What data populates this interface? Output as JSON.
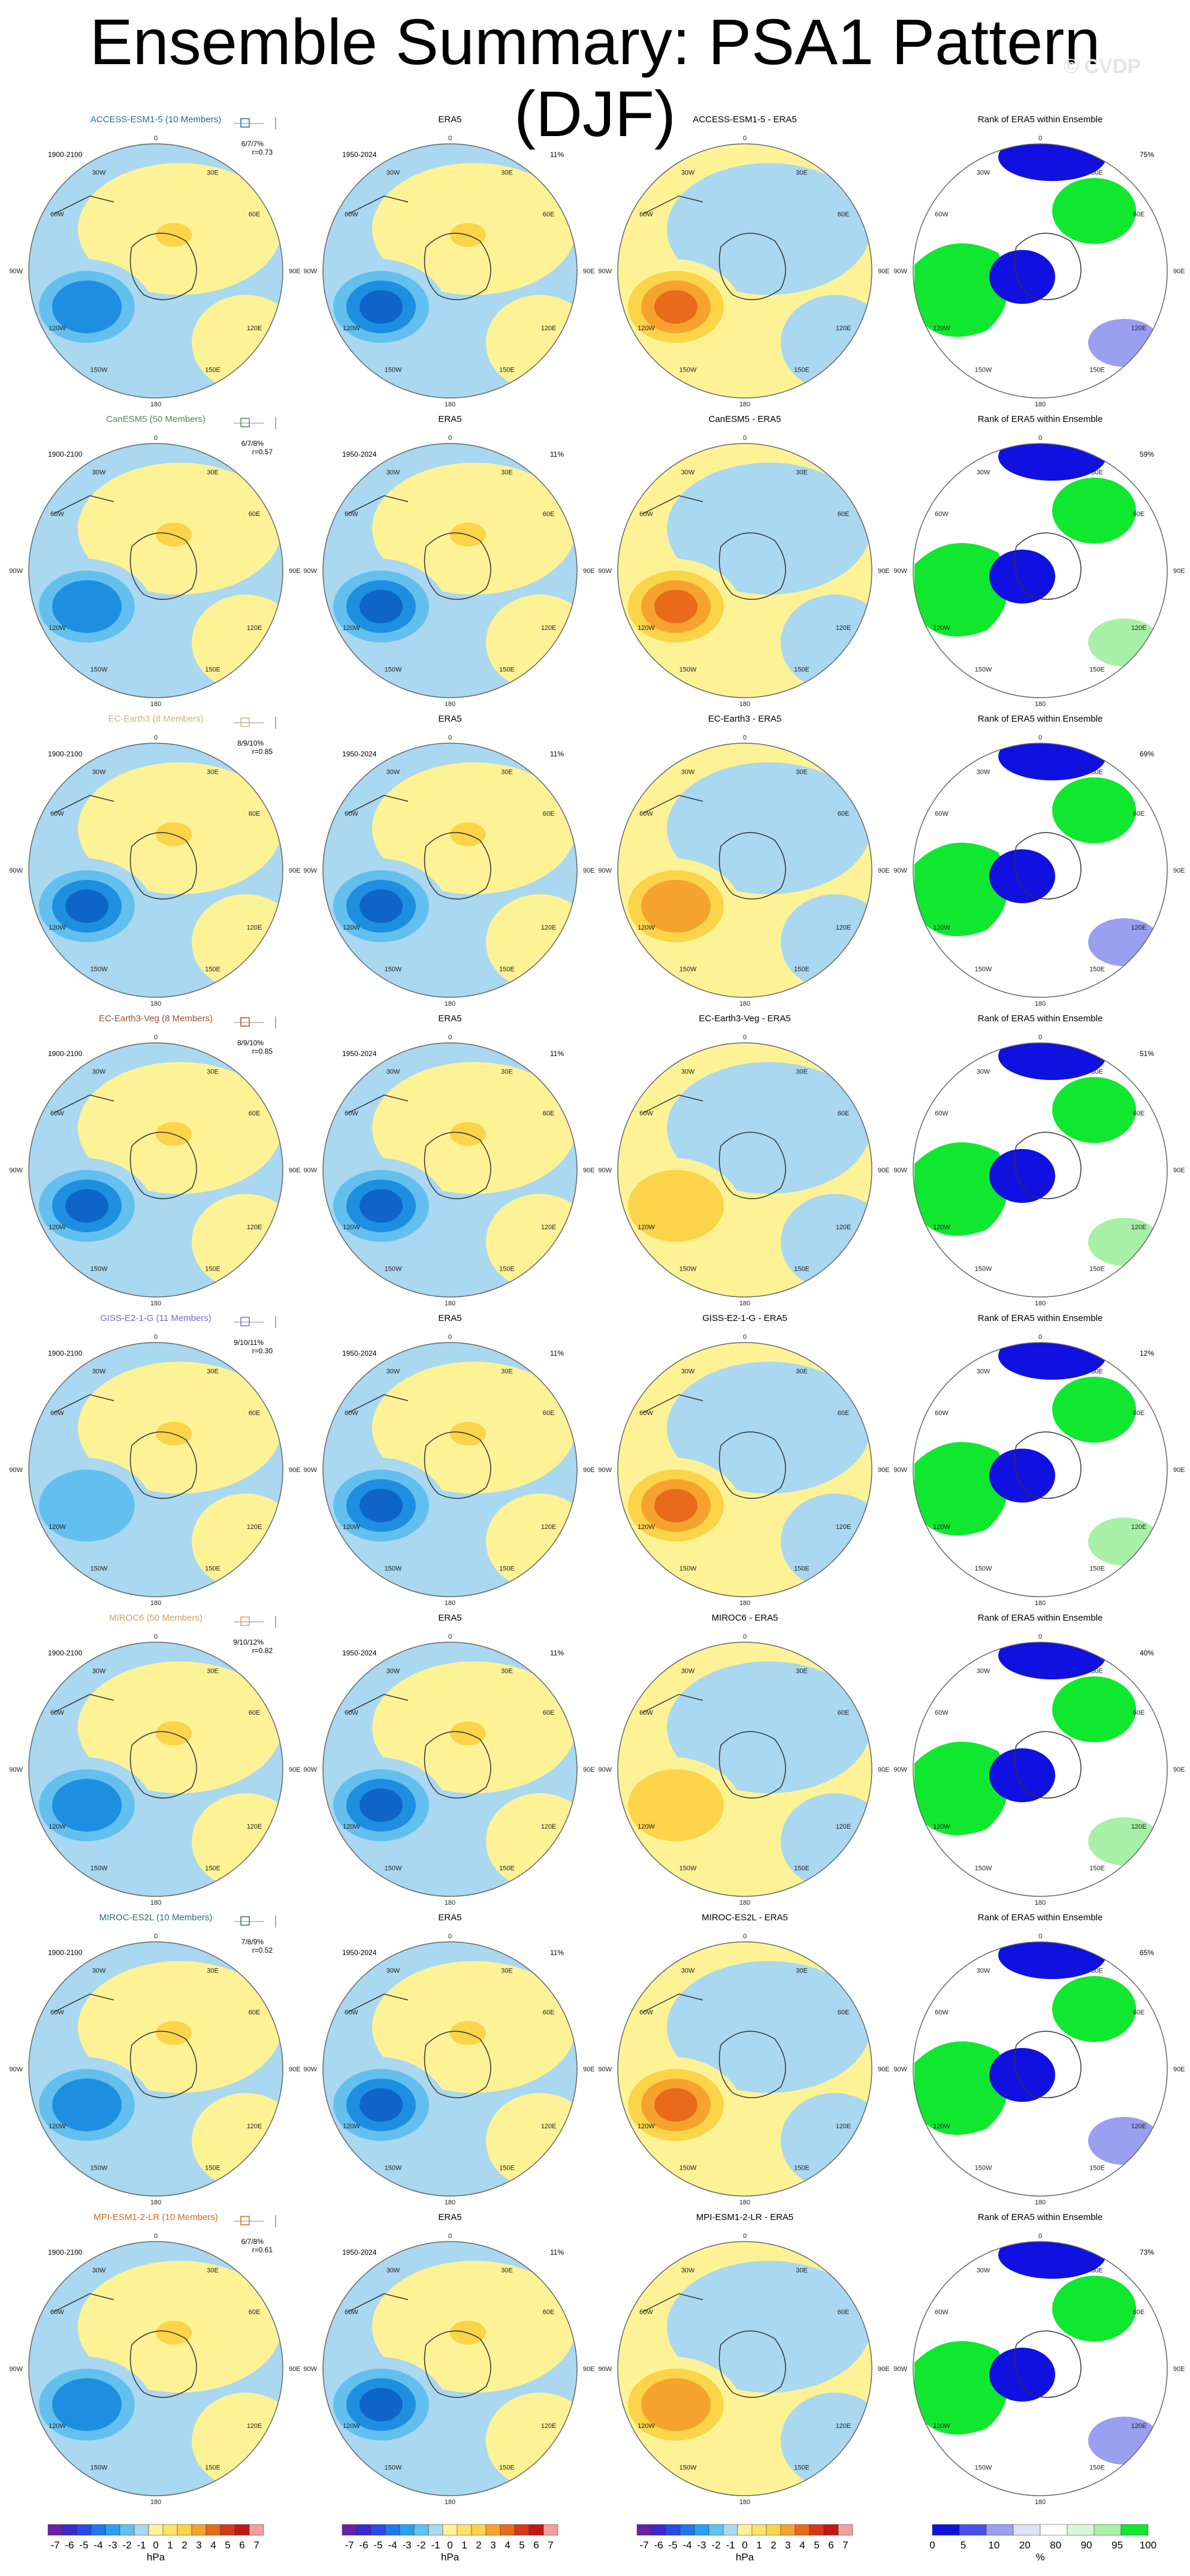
{
  "title": "Ensemble Summary: PSA1 Pattern (DJF)",
  "watermark": "© CVDP",
  "colors": {
    "ocean": "#a9d8f0",
    "land_pos": "#fdf396",
    "neg1": "#63c0ee",
    "neg2": "#1e8fe0",
    "neg3": "#0f64c8",
    "pos1": "#fbd449",
    "pos2": "#f6a32d",
    "pos3": "#e96a1a",
    "rank_low": "#1010e0",
    "rank_low_light": "#9a9ff0",
    "rank_high": "#10e830",
    "rank_high_light": "#a8f0a8"
  },
  "column_headers": {
    "era5": "ERA5",
    "rank": "Rank of ERA5 within Ensemble"
  },
  "period_labels": {
    "model": "1900-2100",
    "obs": "1950-2024",
    "obs_pct": "11%"
  },
  "longitude_labels": [
    "0",
    "30E",
    "60E",
    "90E",
    "120E",
    "150E",
    "180",
    "150W",
    "120W",
    "90W",
    "60W",
    "30W"
  ],
  "rows": [
    {
      "model": "ACCESS-ESM1-5 (10 Members)",
      "model_color": "#1f6f8b",
      "diff": "ACCESS-ESM1-5 - ERA5",
      "pct": "6/7/7%",
      "r": "r=0.73",
      "rank_pct": "75%",
      "neg": 2,
      "diffpos": 3
    },
    {
      "model": "CanESM5 (50 Members)",
      "model_color": "#4f8a4f",
      "diff": "CanESM5 - ERA5",
      "pct": "6/7/8%",
      "r": "r=0.57",
      "rank_pct": "59%",
      "neg": 2,
      "diffpos": 3
    },
    {
      "model": "EC-Earth3 (8 Members)",
      "model_color": "#c9b87a",
      "diff": "EC-Earth3 - ERA5",
      "pct": "8/9/10%",
      "r": "r=0.85",
      "rank_pct": "69%",
      "neg": 3,
      "diffpos": 2
    },
    {
      "model": "EC-Earth3-Veg (8 Members)",
      "model_color": "#a0522d",
      "diff": "EC-Earth3-Veg - ERA5",
      "pct": "8/9/10%",
      "r": "r=0.85",
      "rank_pct": "51%",
      "neg": 3,
      "diffpos": 1
    },
    {
      "model": "GISS-E2-1-G (11 Members)",
      "model_color": "#7b68c8",
      "diff": "GISS-E2-1-G - ERA5",
      "pct": "9/10/11%",
      "r": "r=0.30",
      "rank_pct": "12%",
      "neg": 1,
      "diffpos": 3
    },
    {
      "model": "MIROC6 (50 Members)",
      "model_color": "#d8a060",
      "diff": "MIROC6 - ERA5",
      "pct": "9/10/12%",
      "r": "r=0.82",
      "rank_pct": "40%",
      "neg": 2,
      "diffpos": 1
    },
    {
      "model": "MIROC-ES2L (10 Members)",
      "model_color": "#2e6f6f",
      "diff": "MIROC-ES2L - ERA5",
      "pct": "7/8/9%",
      "r": "r=0.52",
      "rank_pct": "65%",
      "neg": 2,
      "diffpos": 3
    },
    {
      "model": "MPI-ESM1-2-LR (10 Members)",
      "model_color": "#d2691e",
      "diff": "MPI-ESM1-2-LR - ERA5",
      "pct": "6/7/8%",
      "r": "r=0.61",
      "rank_pct": "73%",
      "neg": 2,
      "diffpos": 2
    }
  ],
  "colorbar": {
    "unit": "hPa",
    "ticks": [
      "-7",
      "-6",
      "-5",
      "-4",
      "-3",
      "-2",
      "-1",
      "0",
      "1",
      "2",
      "3",
      "4",
      "5",
      "6",
      "7"
    ],
    "colors": [
      "#6a1fa8",
      "#3a2ad0",
      "#2a4ae8",
      "#1e78e8",
      "#2aa0f0",
      "#63c0ee",
      "#a9d8f0",
      "#fdf396",
      "#fbe36a",
      "#fbd449",
      "#f6a32d",
      "#e96a1a",
      "#d8381a",
      "#c01818",
      "#f2a0a0"
    ]
  },
  "rank_colorbar": {
    "unit": "%",
    "ticks": [
      "0",
      "5",
      "10",
      "20",
      "80",
      "90",
      "95",
      "100"
    ],
    "colors": [
      "#1010e0",
      "#4a50e8",
      "#9a9ff0",
      "#dfe1f8",
      "#ffffff",
      "#d8f6d8",
      "#a8f0a8",
      "#10e830"
    ]
  },
  "chart_data": [
    {
      "type": "heatmap",
      "title": "Ensemble Summary: PSA1 Pattern (DJF)",
      "panels_per_row": [
        "model ensemble mean",
        "ERA5",
        "model - ERA5",
        "Rank of ERA5 within Ensemble"
      ],
      "models": [
        "ACCESS-ESM1-5",
        "CanESM5",
        "EC-Earth3",
        "EC-Earth3-Veg",
        "GISS-E2-1-G",
        "MIROC6",
        "MIROC-ES2L",
        "MPI-ESM1-2-LR"
      ],
      "members": [
        10,
        50,
        8,
        8,
        11,
        50,
        10,
        10
      ],
      "pattern_correlation": [
        0.73,
        0.57,
        0.85,
        0.85,
        0.3,
        0.82,
        0.52,
        0.61
      ],
      "rank_percent": [
        75,
        59,
        69,
        51,
        12,
        40,
        65,
        73
      ],
      "obs_percent_variance": 11,
      "unit": "hPa",
      "contour_levels": [
        -7,
        -6,
        -5,
        -4,
        -3,
        -2,
        -1,
        0,
        1,
        2,
        3,
        4,
        5,
        6,
        7
      ]
    }
  ]
}
